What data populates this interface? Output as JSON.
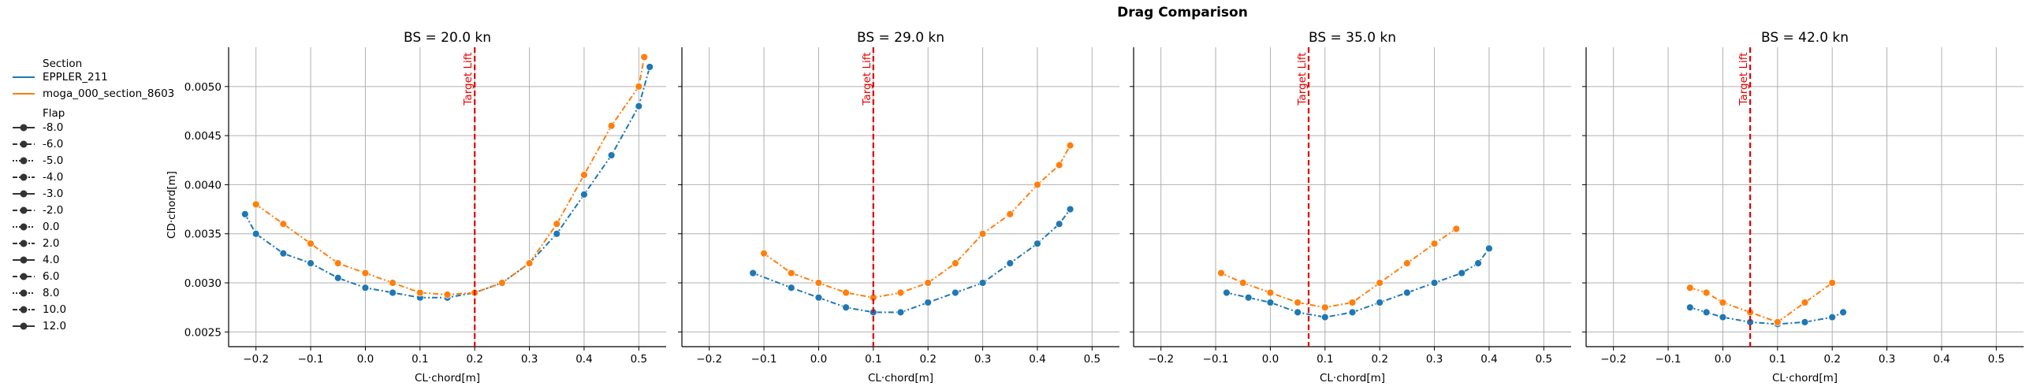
{
  "chart_data": {
    "type": "line",
    "title": "Drag Comparison",
    "xlabel": "CL·chord[m]",
    "ylabel": "CD·chord[m]",
    "xlim": [
      -0.25,
      0.55
    ],
    "ylim": [
      0.00235,
      0.0054
    ],
    "xticks": [
      -0.2,
      -0.1,
      0.0,
      0.1,
      0.2,
      0.3,
      0.4,
      0.5
    ],
    "xtick_labels": [
      "−0.2",
      "−0.1",
      "0.0",
      "0.1",
      "0.2",
      "0.3",
      "0.4",
      "0.5"
    ],
    "yticks": [
      0.0025,
      0.003,
      0.0035,
      0.004,
      0.0045,
      0.005
    ],
    "ytick_labels": [
      "0.0025",
      "0.0030",
      "0.0035",
      "0.0040",
      "0.0045",
      "0.0050"
    ],
    "grid": true,
    "annotation": "Target Lift",
    "colors": {
      "EPPLER_211": "#1f77b4",
      "moga_000_section_8603": "#ff7f0e",
      "target": "#e00000"
    },
    "legend": {
      "position": "left",
      "section_title": "Section",
      "sections": [
        "EPPLER_211",
        "moga_000_section_8603"
      ],
      "flap_title": "Flap",
      "flaps": [
        "-8.0",
        "-6.0",
        "-5.0",
        "-4.0",
        "-3.0",
        "-2.0",
        "0.0",
        "2.0",
        "4.0",
        "6.0",
        "8.0",
        "10.0",
        "12.0"
      ]
    },
    "panels": [
      {
        "title": "BS = 20.0 kn",
        "target_lift": 0.2,
        "series": [
          {
            "name": "EPPLER_211",
            "x": [
              -0.22,
              -0.2,
              -0.15,
              -0.1,
              -0.05,
              0.0,
              0.05,
              0.1,
              0.15,
              0.2,
              0.25,
              0.3,
              0.35,
              0.4,
              0.45,
              0.5,
              0.52
            ],
            "y": [
              0.0037,
              0.0035,
              0.0033,
              0.0032,
              0.00305,
              0.00295,
              0.0029,
              0.00285,
              0.00285,
              0.0029,
              0.003,
              0.0032,
              0.0035,
              0.0039,
              0.0043,
              0.0048,
              0.0052
            ]
          },
          {
            "name": "moga_000_section_8603",
            "x": [
              -0.2,
              -0.15,
              -0.1,
              -0.05,
              0.0,
              0.05,
              0.1,
              0.15,
              0.2,
              0.25,
              0.3,
              0.35,
              0.4,
              0.45,
              0.5,
              0.51
            ],
            "y": [
              0.0038,
              0.0036,
              0.0034,
              0.0032,
              0.0031,
              0.003,
              0.0029,
              0.00288,
              0.0029,
              0.003,
              0.0032,
              0.0036,
              0.0041,
              0.0046,
              0.005,
              0.0053
            ]
          }
        ]
      },
      {
        "title": "BS = 29.0 kn",
        "target_lift": 0.1,
        "series": [
          {
            "name": "EPPLER_211",
            "x": [
              -0.12,
              -0.05,
              0.0,
              0.05,
              0.1,
              0.15,
              0.2,
              0.25,
              0.3,
              0.35,
              0.4,
              0.44,
              0.46
            ],
            "y": [
              0.0031,
              0.00295,
              0.00285,
              0.00275,
              0.0027,
              0.0027,
              0.0028,
              0.0029,
              0.003,
              0.0032,
              0.0034,
              0.0036,
              0.00375
            ]
          },
          {
            "name": "moga_000_section_8603",
            "x": [
              -0.1,
              -0.05,
              0.0,
              0.05,
              0.1,
              0.15,
              0.2,
              0.25,
              0.3,
              0.35,
              0.4,
              0.44,
              0.46
            ],
            "y": [
              0.0033,
              0.0031,
              0.003,
              0.0029,
              0.00285,
              0.0029,
              0.003,
              0.0032,
              0.0035,
              0.0037,
              0.004,
              0.0042,
              0.0044
            ]
          }
        ]
      },
      {
        "title": "BS = 35.0 kn",
        "target_lift": 0.07,
        "series": [
          {
            "name": "EPPLER_211",
            "x": [
              -0.08,
              -0.04,
              0.0,
              0.05,
              0.1,
              0.15,
              0.2,
              0.25,
              0.3,
              0.35,
              0.38,
              0.4
            ],
            "y": [
              0.0029,
              0.00285,
              0.0028,
              0.0027,
              0.00265,
              0.0027,
              0.0028,
              0.0029,
              0.003,
              0.0031,
              0.0032,
              0.00335
            ]
          },
          {
            "name": "moga_000_section_8603",
            "x": [
              -0.09,
              -0.05,
              0.0,
              0.05,
              0.1,
              0.15,
              0.2,
              0.25,
              0.3,
              0.34
            ],
            "y": [
              0.0031,
              0.003,
              0.0029,
              0.0028,
              0.00275,
              0.0028,
              0.003,
              0.0032,
              0.0034,
              0.00355
            ]
          }
        ]
      },
      {
        "title": "BS = 42.0 kn",
        "target_lift": 0.05,
        "series": [
          {
            "name": "EPPLER_211",
            "x": [
              -0.06,
              -0.03,
              0.0,
              0.05,
              0.1,
              0.15,
              0.2,
              0.22
            ],
            "y": [
              0.00275,
              0.0027,
              0.00265,
              0.0026,
              0.00258,
              0.0026,
              0.00265,
              0.0027
            ]
          },
          {
            "name": "moga_000_section_8603",
            "x": [
              -0.06,
              -0.03,
              0.0,
              0.05,
              0.1,
              0.15,
              0.2
            ],
            "y": [
              0.00295,
              0.0029,
              0.0028,
              0.0027,
              0.0026,
              0.0028,
              0.003
            ]
          }
        ]
      }
    ]
  }
}
